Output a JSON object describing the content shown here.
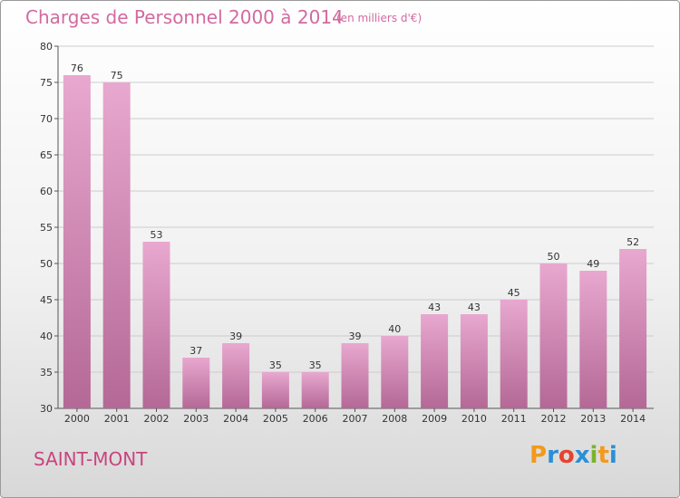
{
  "title": "Charges de Personnel 2000 à 2014",
  "subtitle": "(en milliers d'€)",
  "location": "SAINT-MONT",
  "logo": {
    "text": "Proxiti",
    "letters": [
      {
        "ch": "P",
        "color": "#f29a1c"
      },
      {
        "ch": "r",
        "color": "#2a8fd6"
      },
      {
        "ch": "o",
        "color": "#e8422f"
      },
      {
        "ch": "x",
        "color": "#2a8fd6"
      },
      {
        "ch": "i",
        "color": "#7ab32e"
      },
      {
        "ch": "t",
        "color": "#f29a1c"
      },
      {
        "ch": "i",
        "color": "#2a8fd6"
      }
    ]
  },
  "colors": {
    "bar_top": "#e8a8cf",
    "bar_bottom": "#b46896",
    "title": "#d26aa0",
    "location": "#c9447f"
  },
  "chart_data": {
    "type": "bar",
    "categories": [
      "2000",
      "2001",
      "2002",
      "2003",
      "2004",
      "2005",
      "2006",
      "2007",
      "2008",
      "2009",
      "2010",
      "2011",
      "2012",
      "2013",
      "2014"
    ],
    "values": [
      76,
      75,
      53,
      37,
      39,
      35,
      35,
      39,
      40,
      43,
      43,
      45,
      50,
      49,
      52
    ],
    "title": "Charges de Personnel 2000 à 2014",
    "ylim": [
      30,
      80
    ],
    "yticks": [
      30,
      35,
      40,
      45,
      50,
      55,
      60,
      65,
      70,
      75,
      80
    ],
    "grid": true,
    "legend": "none"
  }
}
